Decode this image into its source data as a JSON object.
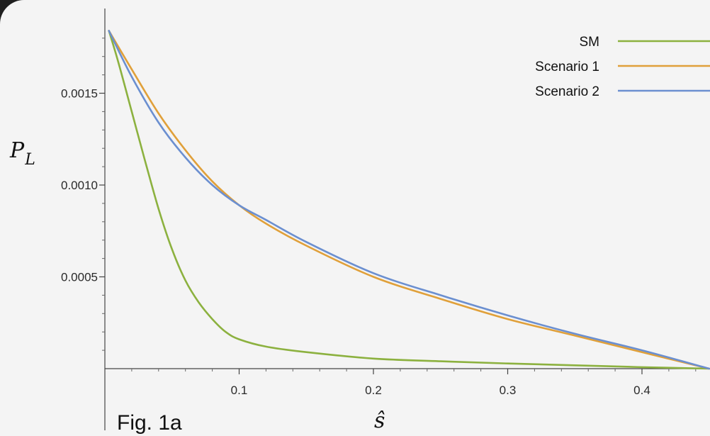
{
  "chart_data": {
    "type": "line",
    "caption": "Fig. 1a",
    "xlabel": "ŝ",
    "ylabel": "P",
    "ylabel_subscript": "L",
    "xlim": [
      0.0,
      0.45
    ],
    "ylim": [
      -0.0001,
      0.0019
    ],
    "x_ticks": [
      {
        "value": 0.1,
        "label": "0.1"
      },
      {
        "value": 0.2,
        "label": "0.2"
      },
      {
        "value": 0.3,
        "label": "0.3"
      },
      {
        "value": 0.4,
        "label": "0.4"
      }
    ],
    "y_ticks": [
      {
        "value": 0.0005,
        "label": "0.0005"
      },
      {
        "value": 0.001,
        "label": "0.0010"
      },
      {
        "value": 0.0015,
        "label": "0.0015"
      }
    ],
    "legend_position": "top-right",
    "series": [
      {
        "name": "SM",
        "color": "#8cb13f",
        "x": [
          0.003,
          0.01,
          0.02,
          0.03,
          0.04,
          0.05,
          0.06,
          0.07,
          0.08,
          0.09,
          0.1,
          0.12,
          0.15,
          0.2,
          0.25,
          0.3,
          0.35,
          0.4,
          0.45
        ],
        "y": [
          0.00184,
          0.00167,
          0.0014,
          0.00113,
          0.00087,
          0.00065,
          0.00048,
          0.00036,
          0.00027,
          0.0002,
          0.00016,
          0.00012,
          9e-05,
          5.5e-05,
          4e-05,
          2.8e-05,
          1.8e-05,
          8e-06,
          0.0
        ]
      },
      {
        "name": "Scenario 1",
        "color": "#e0a03a",
        "x": [
          0.003,
          0.02,
          0.04,
          0.06,
          0.08,
          0.1,
          0.12,
          0.15,
          0.2,
          0.25,
          0.3,
          0.35,
          0.4,
          0.45
        ],
        "y": [
          0.00184,
          0.00163,
          0.00139,
          0.00119,
          0.00102,
          0.00089,
          0.00079,
          0.00067,
          0.0005,
          0.00038,
          0.00027,
          0.00018,
          9e-05,
          0.0
        ]
      },
      {
        "name": "Scenario 2",
        "color": "#6b8fd0",
        "x": [
          0.003,
          0.02,
          0.04,
          0.06,
          0.08,
          0.1,
          0.12,
          0.15,
          0.2,
          0.25,
          0.3,
          0.35,
          0.4,
          0.45
        ],
        "y": [
          0.00184,
          0.00159,
          0.00134,
          0.00115,
          0.001,
          0.00089,
          0.00081,
          0.00069,
          0.00052,
          0.0004,
          0.00029,
          0.00019,
          0.0001,
          0.0
        ]
      }
    ]
  }
}
